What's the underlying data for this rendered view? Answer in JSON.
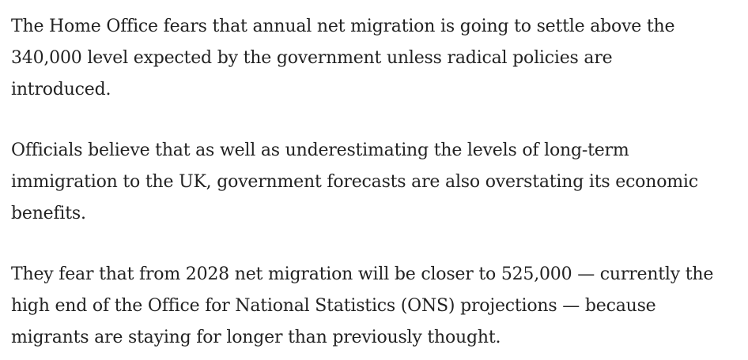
{
  "article": {
    "paragraphs": [
      {
        "lines": [
          "The Home Office fears that annual net migration is going to settle above the",
          "340,000 level expected by the government unless radical policies are",
          "introduced."
        ]
      },
      {
        "lines": [
          "Officials believe that as well as underestimating the levels of long-term",
          "immigration to the UK, government forecasts are also overstating its economic",
          "benefits."
        ]
      },
      {
        "lines": [
          "They fear that from 2028 net migration will be closer to 525,000 — currently the",
          "high end of the Office for National Statistics (ONS) projections — because",
          "migrants are staying for longer than previously thought."
        ]
      }
    ]
  }
}
